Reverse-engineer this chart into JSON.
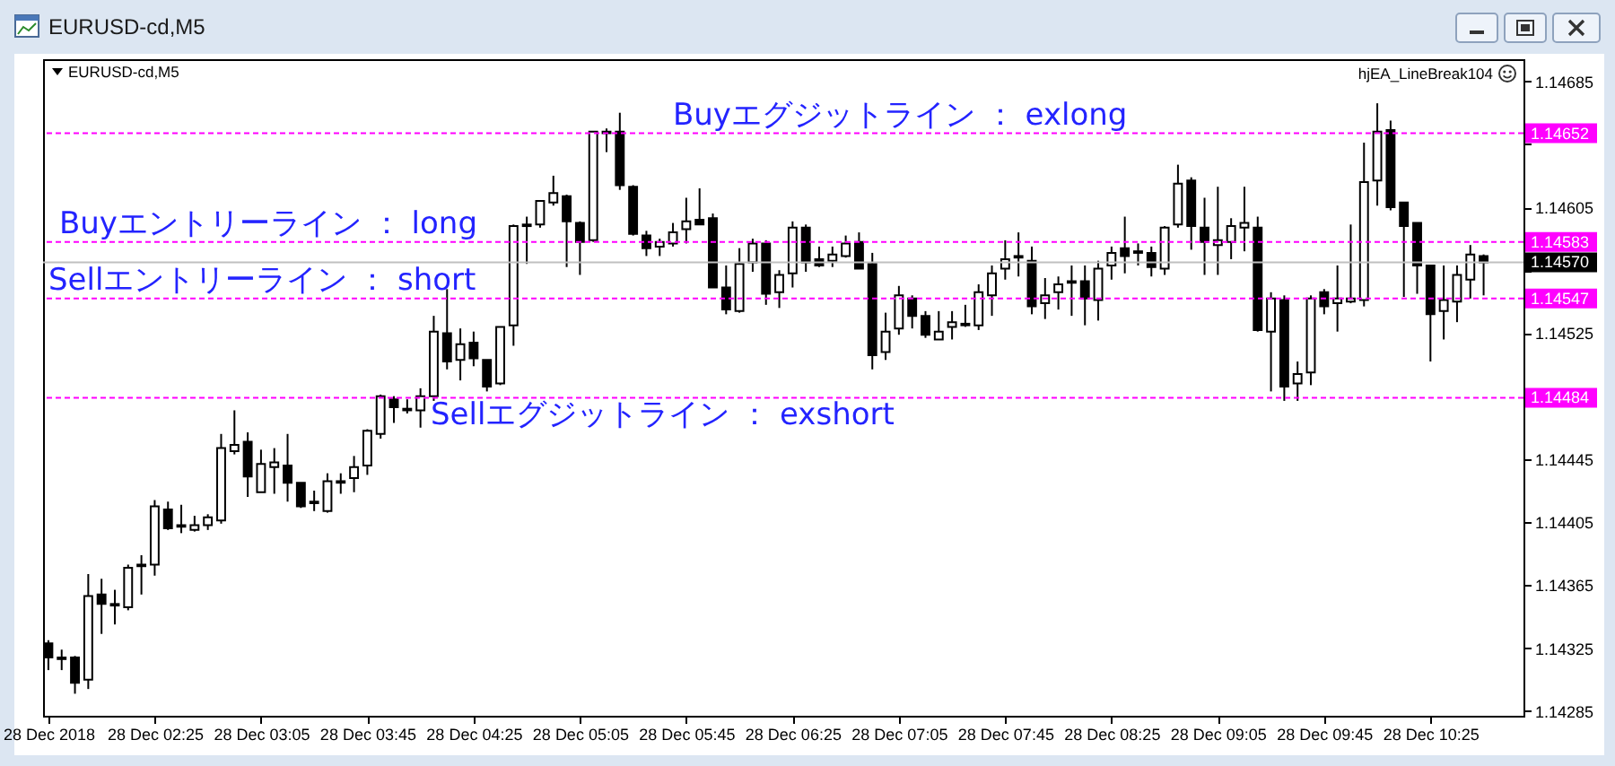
{
  "chart_data": {
    "type": "candlestick",
    "title": "EURUSD-cd,M5",
    "color": "#000000",
    "annotations": [
      "hjEA_LineBreak104",
      "1.14652",
      "1.14583",
      "1.14570",
      "1.14547",
      "1.14484"
    ],
    "x": [
      "2018-12-28T01:45",
      "2018-12-28T01:50",
      "2018-12-28T01:55",
      "2018-12-28T02:00",
      "2018-12-28T02:05",
      "2018-12-28T02:10",
      "2018-12-28T02:15",
      "2018-12-28T02:20",
      "2018-12-28T02:25",
      "2018-12-28T02:30",
      "2018-12-28T02:35",
      "2018-12-28T02:40",
      "2018-12-28T02:45",
      "2018-12-28T02:50",
      "2018-12-28T02:55",
      "2018-12-28T03:00",
      "2018-12-28T03:05",
      "2018-12-28T03:10",
      "2018-12-28T03:15",
      "2018-12-28T03:20",
      "2018-12-28T03:25",
      "2018-12-28T03:30",
      "2018-12-28T03:35",
      "2018-12-28T03:40",
      "2018-12-28T03:45",
      "2018-12-28T03:50",
      "2018-12-28T03:55",
      "2018-12-28T04:00",
      "2018-12-28T04:05",
      "2018-12-28T04:10",
      "2018-12-28T04:15",
      "2018-12-28T04:20",
      "2018-12-28T04:25",
      "2018-12-28T04:30",
      "2018-12-28T04:35",
      "2018-12-28T04:40",
      "2018-12-28T04:45",
      "2018-12-28T04:50",
      "2018-12-28T04:55",
      "2018-12-28T05:00",
      "2018-12-28T05:05",
      "2018-12-28T05:10",
      "2018-12-28T05:15",
      "2018-12-28T05:20",
      "2018-12-28T05:25",
      "2018-12-28T05:30",
      "2018-12-28T05:35",
      "2018-12-28T05:40",
      "2018-12-28T05:45",
      "2018-12-28T05:50",
      "2018-12-28T05:55",
      "2018-12-28T06:00",
      "2018-12-28T06:05",
      "2018-12-28T06:10",
      "2018-12-28T06:15",
      "2018-12-28T06:20",
      "2018-12-28T06:25",
      "2018-12-28T06:30",
      "2018-12-28T06:35",
      "2018-12-28T06:40",
      "2018-12-28T06:45",
      "2018-12-28T06:50",
      "2018-12-28T06:55",
      "2018-12-28T07:00",
      "2018-12-28T07:05",
      "2018-12-28T07:10",
      "2018-12-28T07:15",
      "2018-12-28T07:20",
      "2018-12-28T07:25",
      "2018-12-28T07:30",
      "2018-12-28T07:35",
      "2018-12-28T07:40",
      "2018-12-28T07:45",
      "2018-12-28T07:50",
      "2018-12-28T07:55",
      "2018-12-28T08:00",
      "2018-12-28T08:05",
      "2018-12-28T08:10",
      "2018-12-28T08:15",
      "2018-12-28T08:20",
      "2018-12-28T08:25",
      "2018-12-28T08:30",
      "2018-12-28T08:35",
      "2018-12-28T08:40",
      "2018-12-28T08:45",
      "2018-12-28T08:50",
      "2018-12-28T08:55",
      "2018-12-28T09:00",
      "2018-12-28T09:05",
      "2018-12-28T09:10",
      "2018-12-28T09:15",
      "2018-12-28T09:20",
      "2018-12-28T09:25",
      "2018-12-28T09:30",
      "2018-12-28T09:35",
      "2018-12-28T09:40",
      "2018-12-28T09:45",
      "2018-12-28T09:50",
      "2018-12-28T09:55",
      "2018-12-28T10:00",
      "2018-12-28T10:05",
      "2018-12-28T10:10",
      "2018-12-28T10:15",
      "2018-12-28T10:20",
      "2018-12-28T10:25",
      "2018-12-28T10:30",
      "2018-12-28T10:35",
      "2018-12-28T10:40",
      "2018-12-28T10:45"
    ],
    "ohlc": [
      [
        1.14328,
        1.1433,
        1.14311,
        1.14319
      ],
      [
        1.14318,
        1.14324,
        1.14311,
        1.14319
      ],
      [
        1.14319,
        1.1432,
        1.14296,
        1.14303
      ],
      [
        1.14305,
        1.14372,
        1.14299,
        1.14358
      ],
      [
        1.14359,
        1.14369,
        1.14334,
        1.14353
      ],
      [
        1.14352,
        1.14362,
        1.1434,
        1.14353
      ],
      [
        1.14351,
        1.14378,
        1.14349,
        1.14376
      ],
      [
        1.14377,
        1.14384,
        1.14359,
        1.14378
      ],
      [
        1.14378,
        1.14419,
        1.14371,
        1.14415
      ],
      [
        1.14413,
        1.14418,
        1.144,
        1.14401
      ],
      [
        1.14403,
        1.14416,
        1.14398,
        1.14402
      ],
      [
        1.144,
        1.14409,
        1.14399,
        1.14403
      ],
      [
        1.14403,
        1.1441,
        1.144,
        1.14408
      ],
      [
        1.14406,
        1.14461,
        1.14404,
        1.14452
      ],
      [
        1.1445,
        1.14476,
        1.14448,
        1.14454
      ],
      [
        1.14456,
        1.14462,
        1.14421,
        1.14434
      ],
      [
        1.14424,
        1.14451,
        1.14424,
        1.14442
      ],
      [
        1.1444,
        1.14452,
        1.14423,
        1.14443
      ],
      [
        1.14441,
        1.14461,
        1.14418,
        1.1443
      ],
      [
        1.1443,
        1.1443,
        1.14414,
        1.14415
      ],
      [
        1.14418,
        1.14425,
        1.14412,
        1.14417
      ],
      [
        1.14412,
        1.14436,
        1.14411,
        1.14431
      ],
      [
        1.1443,
        1.14436,
        1.14423,
        1.14431
      ],
      [
        1.14433,
        1.14447,
        1.14424,
        1.1444
      ],
      [
        1.14441,
        1.14464,
        1.14435,
        1.14463
      ],
      [
        1.14461,
        1.14486,
        1.14458,
        1.14485
      ],
      [
        1.14483,
        1.14485,
        1.14468,
        1.14478
      ],
      [
        1.14477,
        1.14483,
        1.14474,
        1.14476
      ],
      [
        1.14476,
        1.1449,
        1.14465,
        1.14485
      ],
      [
        1.14485,
        1.14536,
        1.14482,
        1.14526
      ],
      [
        1.14525,
        1.14553,
        1.14502,
        1.14507
      ],
      [
        1.14508,
        1.14528,
        1.14495,
        1.14518
      ],
      [
        1.14519,
        1.14526,
        1.14504,
        1.14509
      ],
      [
        1.14508,
        1.14508,
        1.14488,
        1.14491
      ],
      [
        1.14493,
        1.14529,
        1.14492,
        1.14529
      ],
      [
        1.1453,
        1.14594,
        1.14517,
        1.14593
      ],
      [
        1.14594,
        1.14599,
        1.14569,
        1.14593
      ],
      [
        1.14594,
        1.14609,
        1.14592,
        1.14609
      ],
      [
        1.14608,
        1.14625,
        1.14606,
        1.14614
      ],
      [
        1.14612,
        1.14613,
        1.14567,
        1.14596
      ],
      [
        1.14595,
        1.14596,
        1.14562,
        1.14583
      ],
      [
        1.14584,
        1.14653,
        1.14583,
        1.14653
      ],
      [
        1.14652,
        1.14655,
        1.1464,
        1.14653
      ],
      [
        1.14653,
        1.14665,
        1.14616,
        1.14619
      ],
      [
        1.14618,
        1.14619,
        1.14587,
        1.14588
      ],
      [
        1.14587,
        1.1459,
        1.14574,
        1.14579
      ],
      [
        1.1458,
        1.14585,
        1.14574,
        1.14583
      ],
      [
        1.14582,
        1.14595,
        1.1458,
        1.14589
      ],
      [
        1.14591,
        1.14611,
        1.14582,
        1.14596
      ],
      [
        1.14597,
        1.14617,
        1.14594,
        1.14594
      ],
      [
        1.14598,
        1.14601,
        1.14554,
        1.14554
      ],
      [
        1.14554,
        1.14568,
        1.14537,
        1.1454
      ],
      [
        1.14539,
        1.14579,
        1.14538,
        1.14569
      ],
      [
        1.1457,
        1.14585,
        1.14564,
        1.14582
      ],
      [
        1.14582,
        1.14584,
        1.14543,
        1.1455
      ],
      [
        1.14551,
        1.14565,
        1.14541,
        1.14562
      ],
      [
        1.14563,
        1.14596,
        1.14554,
        1.14592
      ],
      [
        1.14592,
        1.14594,
        1.14564,
        1.1457
      ],
      [
        1.14572,
        1.1458,
        1.14567,
        1.14568
      ],
      [
        1.14571,
        1.1458,
        1.14567,
        1.14575
      ],
      [
        1.14574,
        1.14587,
        1.14573,
        1.14582
      ],
      [
        1.14583,
        1.14589,
        1.14566,
        1.14566
      ],
      [
        1.14569,
        1.14576,
        1.14502,
        1.14511
      ],
      [
        1.14513,
        1.14538,
        1.14508,
        1.14526
      ],
      [
        1.14528,
        1.14555,
        1.14524,
        1.14549
      ],
      [
        1.14547,
        1.14549,
        1.14528,
        1.14536
      ],
      [
        1.14536,
        1.14539,
        1.14522,
        1.14524
      ],
      [
        1.14521,
        1.14539,
        1.14521,
        1.14526
      ],
      [
        1.14529,
        1.14539,
        1.14521,
        1.14532
      ],
      [
        1.14531,
        1.14543,
        1.14529,
        1.1453
      ],
      [
        1.1453,
        1.14556,
        1.14527,
        1.14551
      ],
      [
        1.14549,
        1.14568,
        1.14536,
        1.14563
      ],
      [
        1.14566,
        1.14584,
        1.14559,
        1.14572
      ],
      [
        1.14573,
        1.14589,
        1.14561,
        1.14574
      ],
      [
        1.14571,
        1.1458,
        1.14537,
        1.14542
      ],
      [
        1.14544,
        1.1456,
        1.14534,
        1.14549
      ],
      [
        1.14551,
        1.14561,
        1.1454,
        1.14556
      ],
      [
        1.14557,
        1.14568,
        1.14536,
        1.14558
      ],
      [
        1.14558,
        1.14568,
        1.1453,
        1.14547
      ],
      [
        1.14546,
        1.14571,
        1.14533,
        1.14566
      ],
      [
        1.14568,
        1.1458,
        1.14559,
        1.14576
      ],
      [
        1.14579,
        1.14599,
        1.14563,
        1.14574
      ],
      [
        1.14576,
        1.14582,
        1.14568,
        1.14577
      ],
      [
        1.14576,
        1.1458,
        1.14561,
        1.14567
      ],
      [
        1.14566,
        1.14593,
        1.14562,
        1.14592
      ],
      [
        1.14594,
        1.14632,
        1.14592,
        1.1462
      ],
      [
        1.14622,
        1.14624,
        1.14578,
        1.14593
      ],
      [
        1.14592,
        1.14611,
        1.14562,
        1.14583
      ],
      [
        1.14581,
        1.14618,
        1.14562,
        1.14584
      ],
      [
        1.14583,
        1.14598,
        1.14572,
        1.14593
      ],
      [
        1.14592,
        1.14618,
        1.14577,
        1.14595
      ],
      [
        1.14592,
        1.14599,
        1.14526,
        1.14527
      ],
      [
        1.14526,
        1.14551,
        1.14488,
        1.14547
      ],
      [
        1.14546,
        1.14549,
        1.14482,
        1.14491
      ],
      [
        1.14493,
        1.14507,
        1.14482,
        1.14499
      ],
      [
        1.145,
        1.14549,
        1.14492,
        1.14547
      ],
      [
        1.14551,
        1.14553,
        1.14537,
        1.14542
      ],
      [
        1.14544,
        1.14568,
        1.14526,
        1.14547
      ],
      [
        1.14545,
        1.14594,
        1.14544,
        1.14547
      ],
      [
        1.14546,
        1.14646,
        1.14542,
        1.14621
      ],
      [
        1.14622,
        1.14671,
        1.14606,
        1.14653
      ],
      [
        1.14654,
        1.1466,
        1.14603,
        1.14605
      ],
      [
        1.14608,
        1.14608,
        1.14548,
        1.14593
      ],
      [
        1.14595,
        1.14595,
        1.1455,
        1.14568
      ],
      [
        1.14568,
        1.14568,
        1.14507,
        1.14537
      ],
      [
        1.14539,
        1.14568,
        1.14521,
        1.14546
      ],
      [
        1.14545,
        1.14568,
        1.14532,
        1.14562
      ],
      [
        1.14559,
        1.14581,
        1.14547,
        1.14575
      ],
      [
        1.14574,
        1.14575,
        1.14549,
        1.1457
      ]
    ],
    "xlim": [
      "2018-12-28T01:43",
      "2018-12-28T11:00"
    ],
    "xticks": [
      {
        "value": "2018-12-28T01:45",
        "label": "28 Dec 2018"
      },
      {
        "value": "2018-12-28T02:25",
        "label": "28 Dec 02:25"
      },
      {
        "value": "2018-12-28T03:05",
        "label": "28 Dec 03:05"
      },
      {
        "value": "2018-12-28T03:45",
        "label": "28 Dec 03:45"
      },
      {
        "value": "2018-12-28T04:25",
        "label": "28 Dec 04:25"
      },
      {
        "value": "2018-12-28T05:05",
        "label": "28 Dec 05:05"
      },
      {
        "value": "2018-12-28T05:45",
        "label": "28 Dec 05:45"
      },
      {
        "value": "2018-12-28T06:25",
        "label": "28 Dec 06:25"
      },
      {
        "value": "2018-12-28T07:05",
        "label": "28 Dec 07:05"
      },
      {
        "value": "2018-12-28T07:45",
        "label": "28 Dec 07:45"
      },
      {
        "value": "2018-12-28T08:25",
        "label": "28 Dec 08:25"
      },
      {
        "value": "2018-12-28T09:05",
        "label": "28 Dec 09:05"
      },
      {
        "value": "2018-12-28T09:45",
        "label": "28 Dec 09:45"
      },
      {
        "value": "2018-12-28T10:25",
        "label": "28 Dec 10:25"
      }
    ],
    "ylim": [
      1.14282,
      1.14699
    ],
    "yticks": [
      1.14285,
      1.14325,
      1.14365,
      1.14405,
      1.14445,
      {
        "value": 1.14485,
        "label": null
      },
      1.14525,
      {
        "value": 1.14565,
        "label": null
      },
      1.14605,
      {
        "value": 1.14645,
        "label": null
      },
      1.14685
    ],
    "ref_lines": [
      {
        "axis": "y",
        "value": 1.14652,
        "label": "Buyエグジットライン ： exlong",
        "color": "#ff00ff",
        "line_style": "dashed"
      },
      {
        "axis": "y",
        "value": 1.14583,
        "label": "Buyエントリーライン ： long",
        "color": "#ff00ff",
        "line_style": "dashed"
      },
      {
        "axis": "y",
        "value": 1.1457,
        "color": "#c0c0c0",
        "line_style": "solid"
      },
      {
        "axis": "y",
        "value": 1.14547,
        "label": "Sellエントリーライン ： short",
        "color": "#ff00ff",
        "line_style": "dashed"
      },
      {
        "axis": "y",
        "value": 1.14484,
        "label": "Sellエグジットライン ： exshort",
        "color": "#ff00ff",
        "line_style": "dashed"
      }
    ]
  }
}
